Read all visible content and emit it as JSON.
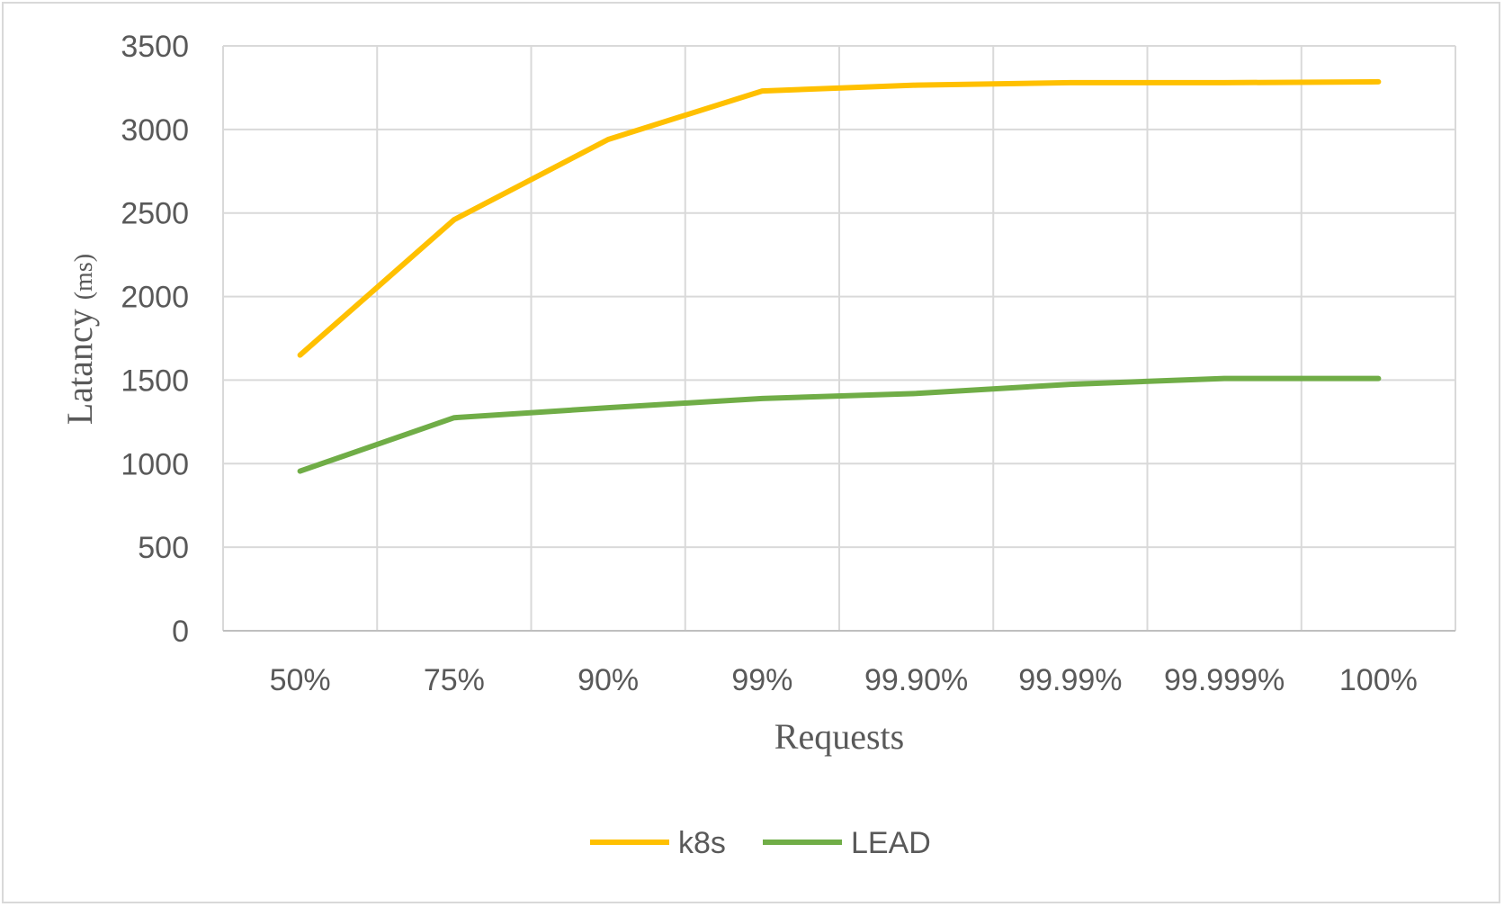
{
  "chart_data": {
    "type": "line",
    "categories": [
      "50%",
      "75%",
      "90%",
      "99%",
      "99.90%",
      "99.99%",
      "99.999%",
      "100%"
    ],
    "series": [
      {
        "name": "k8s",
        "color": "#ffc000",
        "values": [
          1650,
          2460,
          2940,
          3230,
          3265,
          3280,
          3280,
          3285
        ]
      },
      {
        "name": "LEAD",
        "color": "#70ad47",
        "values": [
          955,
          1275,
          1335,
          1390,
          1420,
          1475,
          1510,
          1510
        ]
      }
    ],
    "xlabel": "Requests",
    "ylabel": {
      "main": "Latancy ",
      "unit": "(ms)"
    },
    "ylim": [
      0,
      3500
    ],
    "yticks": [
      0,
      500,
      1000,
      1500,
      2000,
      2500,
      3000,
      3500
    ],
    "grid": true,
    "legend_position": "bottom",
    "colors": {
      "grid": "#d9d9d9",
      "text": "#595959",
      "border": "#d9d9d9"
    }
  }
}
